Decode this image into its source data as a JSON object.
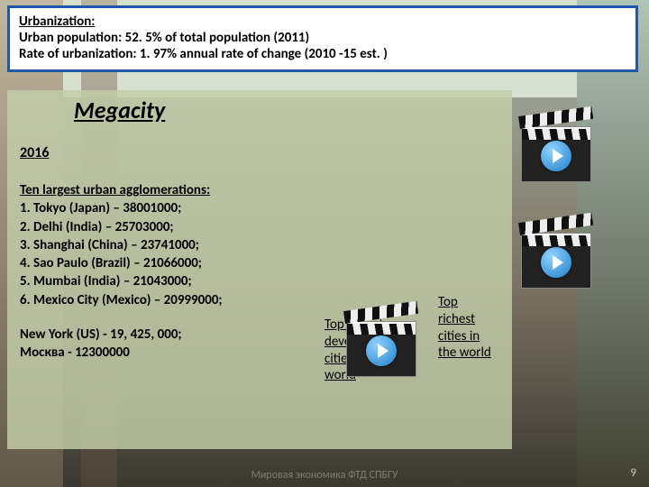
{
  "header": {
    "title": "Urbanization:",
    "line2": "Urban population: 52. 5% of total population (2011)",
    "line3": "Rate of urbanization: 1. 97% annual rate of change (2010 -15 est. )"
  },
  "content": {
    "megacity_heading": "Megacity",
    "year": "2016",
    "agg_title": "Ten largest urban agglomerations:",
    "items": [
      "1. Tokyo (Japan) – 38001000;",
      "2. Delhi (India) – 25703000;",
      "3. Shanghai (China) – 23741000;",
      "4. Sao Paulo (Brazil) – 21066000;",
      "5. Mumbai (India) – 21043000;",
      "6. Mexico City (Mexico) – 20999000;"
    ],
    "others_l1": "New York (US) - 19, 425, 000;",
    "others_l2": "Москва - 12300000"
  },
  "labels": {
    "top_richest_l1": "Top",
    "top_richest_l2": "richest",
    "top_richest_l3": "cities in",
    "top_richest_l4": "the world",
    "top_fastest_l1": "Top fastest",
    "top_fastest_l2": "developing",
    "top_fastest_l3": "cities in the",
    "top_fastest_l4": "world"
  },
  "footer": {
    "text": "Мировая экономика ФТД СПБГУ",
    "slide_number": "9"
  },
  "colors": {
    "header_border": "#1e5aa8",
    "content_bg": "rgba(195,205,170,0.82)"
  }
}
